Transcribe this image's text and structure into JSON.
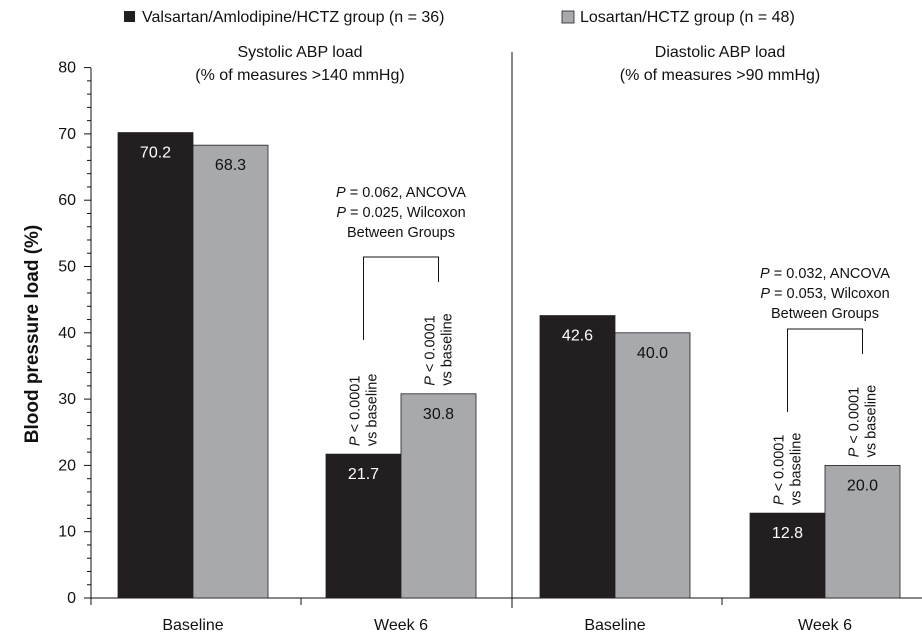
{
  "chart_data": {
    "type": "bar",
    "ylabel": "Blood pressure load (%)",
    "ylim": [
      0,
      80
    ],
    "yticks": [
      0,
      10,
      20,
      30,
      40,
      50,
      60,
      70,
      80
    ],
    "legend": {
      "placement": "top",
      "entries": [
        "Valsartan/Amlodipine/HCTZ group (n = 36)",
        "Losartan/HCTZ group (n = 48)"
      ]
    },
    "series_colors": [
      "#231f20",
      "#a7a9ac"
    ],
    "panels": [
      {
        "title_line1": "Systolic ABP load",
        "title_line2": "(% of measures >140 mmHg)",
        "categories": [
          "Baseline",
          "Week 6"
        ],
        "series": [
          {
            "name": "Valsartan/Amlodipine/HCTZ group (n = 36)",
            "values": [
              70.2,
              21.7
            ],
            "labels": [
              "70.2",
              "21.7"
            ]
          },
          {
            "name": "Losartan/HCTZ group (n = 48)",
            "values": [
              68.3,
              30.8
            ],
            "labels": [
              "68.3",
              "30.8"
            ]
          }
        ],
        "between_groups": {
          "line1_p": "P",
          "line1_rest": " = 0.062, ANCOVA",
          "line2_p": "P",
          "line2_rest": " = 0.025, Wilcoxon",
          "line3": "Between Groups"
        },
        "vs_baseline": [
          {
            "p": "P",
            "rest": " < 0.0001",
            "line2": "vs baseline"
          },
          {
            "p": "P",
            "rest": " < 0.0001",
            "line2": "vs baseline"
          }
        ]
      },
      {
        "title_line1": "Diastolic ABP load",
        "title_line2": "(% of measures >90 mmHg)",
        "categories": [
          "Baseline",
          "Week 6"
        ],
        "series": [
          {
            "name": "Valsartan/Amlodipine/HCTZ group (n = 36)",
            "values": [
              42.6,
              12.8
            ],
            "labels": [
              "42.6",
              "12.8"
            ]
          },
          {
            "name": "Losartan/HCTZ group (n = 48)",
            "values": [
              40.0,
              20.0
            ],
            "labels": [
              "40.0",
              "20.0"
            ]
          }
        ],
        "between_groups": {
          "line1_p": "P",
          "line1_rest": " = 0.032, ANCOVA",
          "line2_p": "P",
          "line2_rest": " = 0.053, Wilcoxon",
          "line3": "Between Groups"
        },
        "vs_baseline": [
          {
            "p": "P",
            "rest": " < 0.0001",
            "line2": "vs baseline"
          },
          {
            "p": "P",
            "rest": " < 0.0001",
            "line2": "vs baseline"
          }
        ]
      }
    ]
  }
}
